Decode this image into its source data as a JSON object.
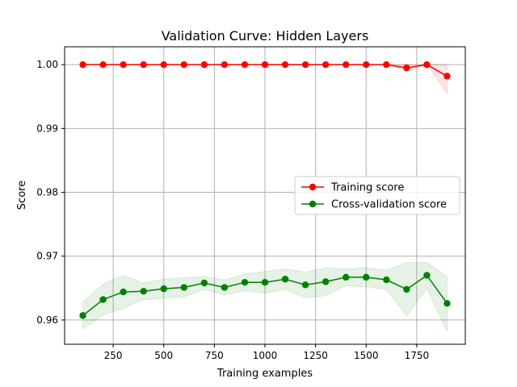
{
  "chart_data": {
    "type": "line",
    "title": "Validation Curve: Hidden Layers",
    "xlabel": "Training examples",
    "ylabel": "Score",
    "xlim": [
      10,
      1990
    ],
    "ylim": [
      0.9562,
      1.0028
    ],
    "xticks": [
      250,
      500,
      750,
      1000,
      1250,
      1500,
      1750
    ],
    "yticks": [
      0.96,
      0.97,
      0.98,
      0.99,
      1.0
    ],
    "xtick_labels": [
      "250",
      "500",
      "750",
      "1000",
      "1250",
      "1500",
      "1750"
    ],
    "ytick_labels": [
      "0.96",
      "0.97",
      "0.98",
      "0.99",
      "1.00"
    ],
    "grid": true,
    "legend_position": "center-right",
    "x": [
      100,
      200,
      300,
      400,
      500,
      600,
      700,
      800,
      900,
      1000,
      1100,
      1200,
      1300,
      1400,
      1500,
      1600,
      1700,
      1800,
      1900
    ],
    "series": [
      {
        "name": "Training score",
        "color": "#ff0000",
        "values": [
          1.0,
          1.0,
          1.0,
          1.0,
          1.0,
          1.0,
          1.0,
          1.0,
          1.0,
          1.0,
          1.0,
          1.0,
          1.0,
          1.0,
          1.0,
          1.0,
          0.9995,
          1.0,
          0.9982
        ],
        "band_upper": [
          1.0,
          1.0,
          1.0,
          1.0,
          1.0,
          1.0,
          1.0,
          1.0,
          1.0,
          1.0,
          1.0,
          1.0,
          1.0,
          1.0,
          1.0,
          1.0,
          1.0,
          1.0,
          1.0
        ],
        "band_lower": [
          1.0,
          1.0,
          1.0,
          1.0,
          1.0,
          1.0,
          1.0,
          1.0,
          1.0,
          1.0,
          1.0,
          1.0,
          1.0,
          1.0,
          1.0,
          1.0,
          0.999,
          1.0,
          0.9955
        ]
      },
      {
        "name": "Cross-validation score",
        "color": "#008000",
        "values": [
          0.9607,
          0.9632,
          0.9644,
          0.9645,
          0.9649,
          0.9651,
          0.9658,
          0.9651,
          0.9659,
          0.9659,
          0.9664,
          0.9655,
          0.966,
          0.9667,
          0.9667,
          0.9663,
          0.9648,
          0.967,
          0.9626
        ],
        "band_upper": [
          0.9628,
          0.9656,
          0.967,
          0.9658,
          0.9664,
          0.9666,
          0.9668,
          0.9663,
          0.9672,
          0.9676,
          0.968,
          0.9675,
          0.9682,
          0.968,
          0.9682,
          0.9678,
          0.969,
          0.969,
          0.9668
        ],
        "band_lower": [
          0.9586,
          0.9608,
          0.9618,
          0.9632,
          0.9634,
          0.9636,
          0.9648,
          0.9639,
          0.9646,
          0.9642,
          0.9648,
          0.9635,
          0.9638,
          0.9654,
          0.9652,
          0.9648,
          0.9606,
          0.965,
          0.9582
        ]
      }
    ]
  }
}
